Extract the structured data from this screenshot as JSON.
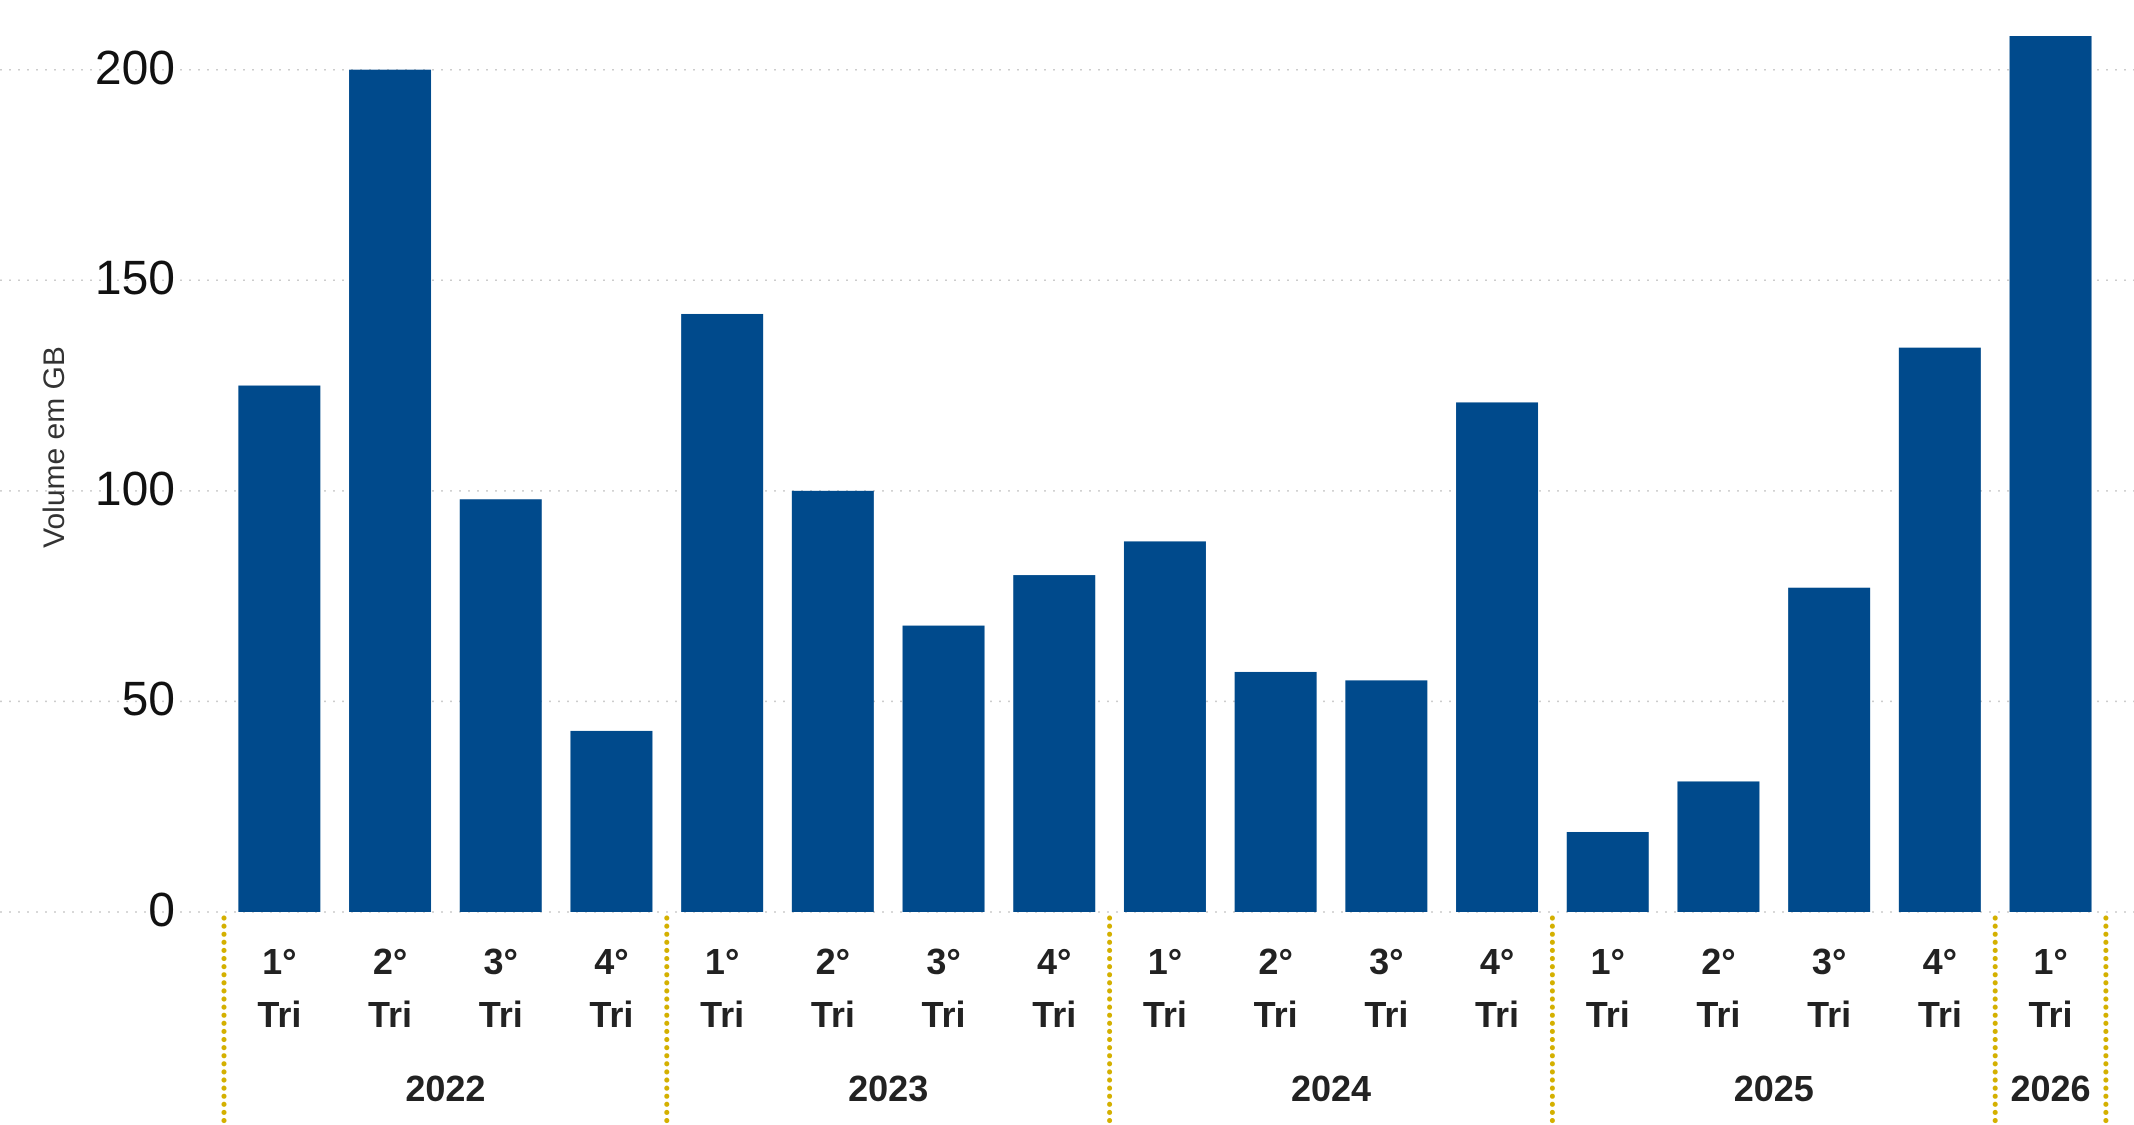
{
  "chart_data": {
    "type": "bar",
    "y_label": "Volume em GB",
    "categories": [
      "1° Tri",
      "2° Tri",
      "3° Tri",
      "4° Tri",
      "1° Tri",
      "2° Tri",
      "3° Tri",
      "4° Tri",
      "1° Tri",
      "2° Tri",
      "3° Tri",
      "4° Tri",
      "1° Tri",
      "2° Tri",
      "3° Tri",
      "4° Tri",
      "1° Tri"
    ],
    "groups": [
      {
        "label": "2022",
        "count": 4
      },
      {
        "label": "2023",
        "count": 4
      },
      {
        "label": "2024",
        "count": 4
      },
      {
        "label": "2025",
        "count": 4
      },
      {
        "label": "2026",
        "count": 1
      }
    ],
    "values": [
      125,
      200,
      98,
      43,
      142,
      100,
      68,
      80,
      88,
      57,
      55,
      121,
      19,
      31,
      77,
      134,
      208
    ],
    "color": "#004a8c",
    "separator_color": "#d4b000",
    "ylim": [
      0,
      208
    ],
    "yticks": [
      0,
      50,
      100,
      150,
      200
    ],
    "grid": true
  }
}
